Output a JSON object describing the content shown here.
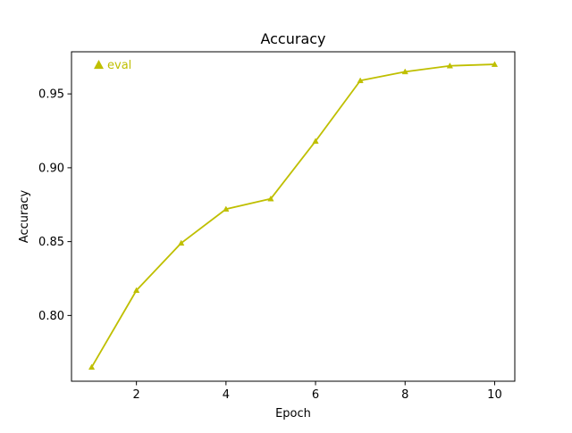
{
  "chart_data": {
    "type": "line",
    "title": "Accuracy",
    "xlabel": "Epoch",
    "ylabel": "Accuracy",
    "xlim": [
      0.55,
      10.45
    ],
    "ylim": [
      0.7555,
      0.9785
    ],
    "xticks": [
      2,
      4,
      6,
      8,
      10
    ],
    "xtick_labels": [
      "2",
      "4",
      "6",
      "8",
      "10"
    ],
    "yticks": [
      0.8,
      0.85,
      0.9,
      0.95
    ],
    "ytick_labels": [
      "0.80",
      "0.85",
      "0.90",
      "0.95"
    ],
    "grid": false,
    "legend_position": "top-left",
    "series": [
      {
        "name": "eval",
        "color": "#bfbf00",
        "marker": "triangle-up",
        "x": [
          1,
          2,
          3,
          4,
          5,
          6,
          7,
          8,
          9,
          10
        ],
        "y": [
          0.765,
          0.817,
          0.849,
          0.872,
          0.879,
          0.918,
          0.959,
          0.965,
          0.969,
          0.97
        ]
      }
    ]
  }
}
